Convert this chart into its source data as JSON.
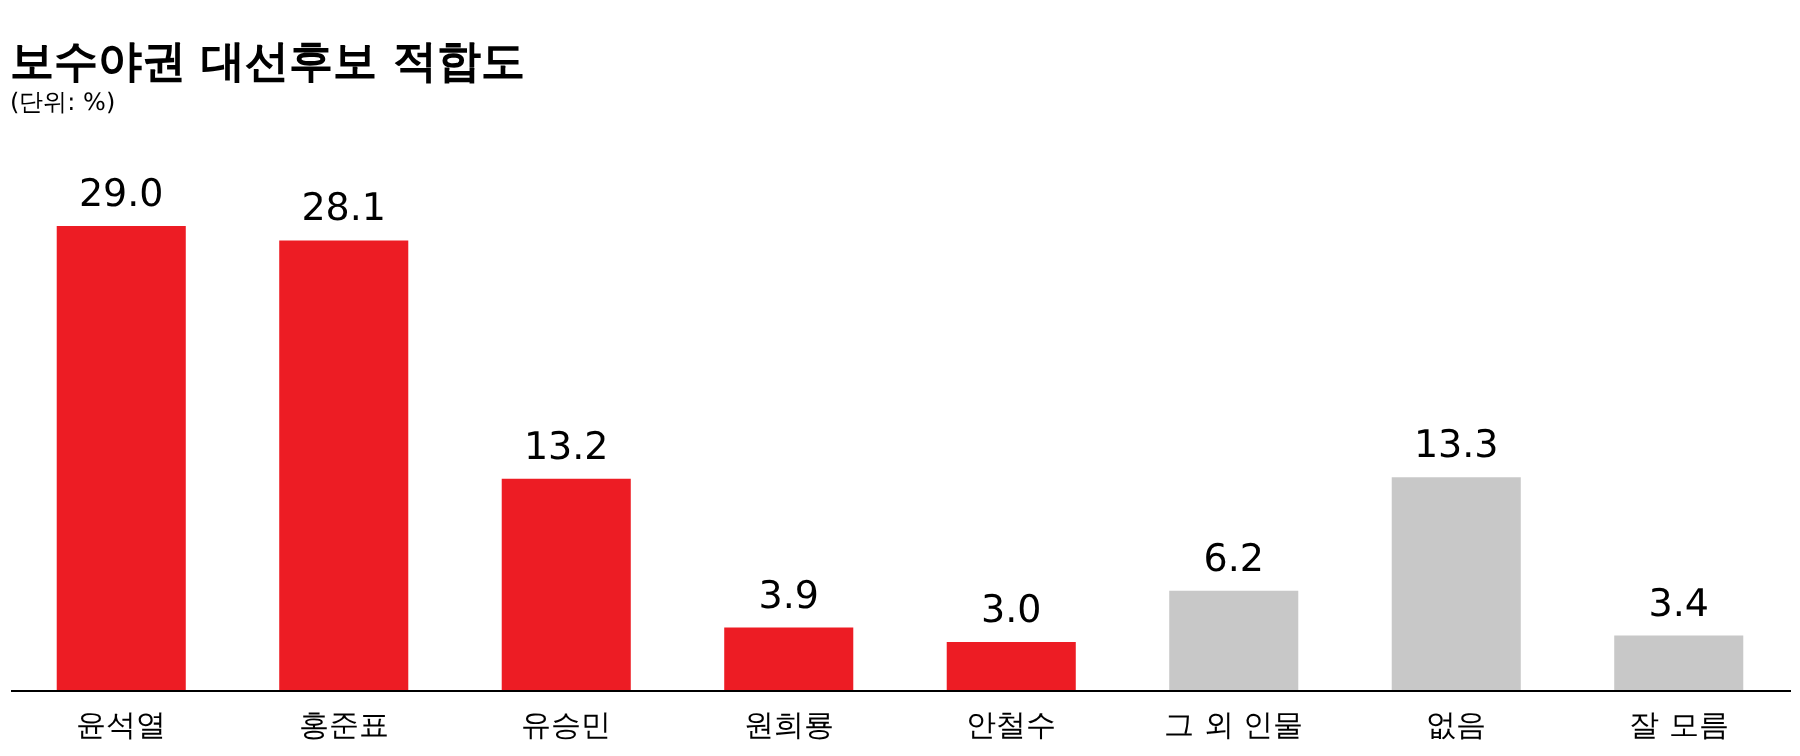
{
  "chart_data": {
    "type": "bar",
    "title": "보수야권 대선후보 적합도",
    "subtitle": "(단위: %)",
    "categories": [
      "윤석열",
      "홍준표",
      "유승민",
      "원희룡",
      "안철수",
      "그 외 인물",
      "없음",
      "잘 모름"
    ],
    "values": [
      29.0,
      28.1,
      13.2,
      3.9,
      3.0,
      6.2,
      13.3,
      3.4
    ],
    "colors": [
      "#ed1c24",
      "#ed1c24",
      "#ed1c24",
      "#ed1c24",
      "#ed1c24",
      "#c8c8c8",
      "#c8c8c8",
      "#c8c8c8"
    ],
    "value_labels": [
      "29.0",
      "28.1",
      "13.2",
      "3.9",
      "3.0",
      "6.2",
      "13.3",
      "3.4"
    ],
    "tick_labels": "x"
  }
}
